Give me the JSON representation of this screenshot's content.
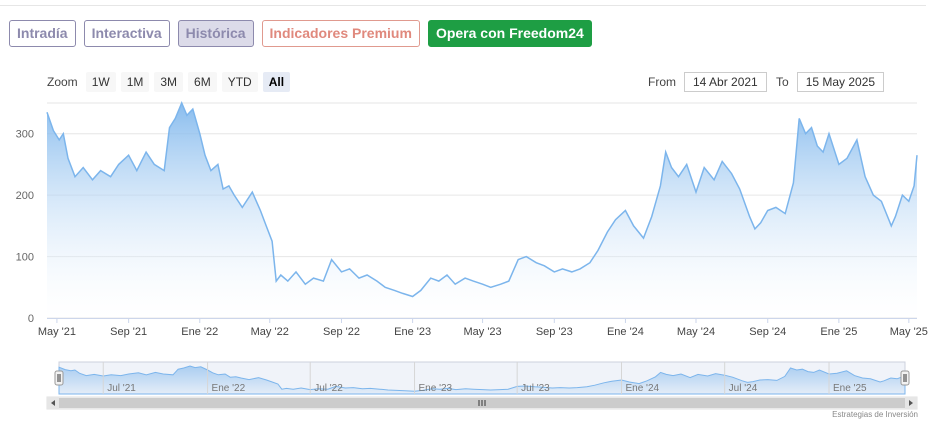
{
  "tabs": [
    {
      "label": "Intradía"
    },
    {
      "label": "Interactiva"
    },
    {
      "label": "Histórica"
    },
    {
      "label": "Indicadores Premium"
    },
    {
      "label": "Opera con Freedom24"
    }
  ],
  "zoom": {
    "label": "Zoom",
    "buttons": [
      "1W",
      "1M",
      "3M",
      "6M",
      "YTD",
      "All"
    ],
    "active": "All"
  },
  "range": {
    "from_label": "From",
    "from_value": "14 Abr 2021",
    "to_label": "To",
    "to_value": "15 May 2025"
  },
  "navigator": {
    "labels": [
      "Jul '21",
      "Ene '22",
      "Jul '22",
      "Ene '23",
      "Jul '23",
      "Ene '24",
      "Jul '24",
      "Ene '25"
    ],
    "handle_icon": "grip-lines-icon"
  },
  "credit": "Estrategias de Inversión",
  "colors": {
    "line": "#7cb5ec",
    "fill_top": "#7cb5ec",
    "fill_bottom": "#ffffff",
    "accent_green": "#1e9e44"
  },
  "chart_data": {
    "type": "area",
    "title": "",
    "xlabel": "",
    "ylabel": "",
    "ylim": [
      0,
      350
    ],
    "yticks": [
      0,
      100,
      200,
      300
    ],
    "x_range": [
      "2021-04-14",
      "2025-05-15"
    ],
    "xtick_labels": [
      {
        "date": "2021-05-01",
        "label": "May '21"
      },
      {
        "date": "2021-09-01",
        "label": "Sep '21"
      },
      {
        "date": "2022-01-01",
        "label": "Ene '22"
      },
      {
        "date": "2022-05-01",
        "label": "May '22"
      },
      {
        "date": "2022-09-01",
        "label": "Sep '22"
      },
      {
        "date": "2023-01-01",
        "label": "Ene '23"
      },
      {
        "date": "2023-05-01",
        "label": "May '23"
      },
      {
        "date": "2023-09-01",
        "label": "Sep '23"
      },
      {
        "date": "2024-01-01",
        "label": "Ene '24"
      },
      {
        "date": "2024-05-01",
        "label": "May '24"
      },
      {
        "date": "2024-09-01",
        "label": "Sep '24"
      },
      {
        "date": "2025-01-01",
        "label": "Ene '25"
      },
      {
        "date": "2025-05-01",
        "label": "May '25"
      }
    ],
    "series": [
      {
        "points": [
          [
            "2021-04-14",
            335
          ],
          [
            "2021-04-25",
            305
          ],
          [
            "2021-05-05",
            290
          ],
          [
            "2021-05-12",
            300
          ],
          [
            "2021-05-20",
            260
          ],
          [
            "2021-06-01",
            230
          ],
          [
            "2021-06-15",
            245
          ],
          [
            "2021-07-01",
            225
          ],
          [
            "2021-07-15",
            240
          ],
          [
            "2021-08-01",
            230
          ],
          [
            "2021-08-15",
            250
          ],
          [
            "2021-09-01",
            265
          ],
          [
            "2021-09-15",
            240
          ],
          [
            "2021-10-01",
            270
          ],
          [
            "2021-10-15",
            250
          ],
          [
            "2021-11-01",
            240
          ],
          [
            "2021-11-10",
            310
          ],
          [
            "2021-11-20",
            325
          ],
          [
            "2021-12-01",
            350
          ],
          [
            "2021-12-10",
            330
          ],
          [
            "2021-12-20",
            340
          ],
          [
            "2022-01-01",
            300
          ],
          [
            "2022-01-10",
            265
          ],
          [
            "2022-01-20",
            240
          ],
          [
            "2022-02-01",
            250
          ],
          [
            "2022-02-10",
            210
          ],
          [
            "2022-02-20",
            215
          ],
          [
            "2022-03-01",
            200
          ],
          [
            "2022-03-15",
            180
          ],
          [
            "2022-04-01",
            205
          ],
          [
            "2022-04-15",
            175
          ],
          [
            "2022-04-25",
            150
          ],
          [
            "2022-05-05",
            125
          ],
          [
            "2022-05-12",
            60
          ],
          [
            "2022-05-20",
            70
          ],
          [
            "2022-06-01",
            60
          ],
          [
            "2022-06-15",
            75
          ],
          [
            "2022-07-01",
            55
          ],
          [
            "2022-07-15",
            65
          ],
          [
            "2022-08-01",
            60
          ],
          [
            "2022-08-15",
            95
          ],
          [
            "2022-09-01",
            75
          ],
          [
            "2022-09-15",
            80
          ],
          [
            "2022-10-01",
            65
          ],
          [
            "2022-10-15",
            70
          ],
          [
            "2022-11-01",
            60
          ],
          [
            "2022-11-15",
            50
          ],
          [
            "2022-12-01",
            45
          ],
          [
            "2022-12-15",
            40
          ],
          [
            "2023-01-01",
            35
          ],
          [
            "2023-01-15",
            45
          ],
          [
            "2023-02-01",
            65
          ],
          [
            "2023-02-15",
            60
          ],
          [
            "2023-03-01",
            70
          ],
          [
            "2023-03-15",
            55
          ],
          [
            "2023-04-01",
            65
          ],
          [
            "2023-04-15",
            60
          ],
          [
            "2023-05-01",
            55
          ],
          [
            "2023-05-15",
            50
          ],
          [
            "2023-06-01",
            55
          ],
          [
            "2023-06-15",
            60
          ],
          [
            "2023-07-01",
            95
          ],
          [
            "2023-07-15",
            100
          ],
          [
            "2023-08-01",
            90
          ],
          [
            "2023-08-15",
            85
          ],
          [
            "2023-09-01",
            75
          ],
          [
            "2023-09-15",
            80
          ],
          [
            "2023-10-01",
            75
          ],
          [
            "2023-10-15",
            80
          ],
          [
            "2023-11-01",
            90
          ],
          [
            "2023-11-15",
            110
          ],
          [
            "2023-12-01",
            140
          ],
          [
            "2023-12-15",
            160
          ],
          [
            "2024-01-01",
            175
          ],
          [
            "2024-01-15",
            150
          ],
          [
            "2024-02-01",
            130
          ],
          [
            "2024-02-15",
            165
          ],
          [
            "2024-03-01",
            215
          ],
          [
            "2024-03-10",
            270
          ],
          [
            "2024-03-20",
            245
          ],
          [
            "2024-04-01",
            230
          ],
          [
            "2024-04-15",
            250
          ],
          [
            "2024-05-01",
            205
          ],
          [
            "2024-05-15",
            245
          ],
          [
            "2024-06-01",
            225
          ],
          [
            "2024-06-15",
            255
          ],
          [
            "2024-07-01",
            235
          ],
          [
            "2024-07-15",
            210
          ],
          [
            "2024-08-01",
            165
          ],
          [
            "2024-08-10",
            145
          ],
          [
            "2024-08-20",
            155
          ],
          [
            "2024-09-01",
            175
          ],
          [
            "2024-09-15",
            180
          ],
          [
            "2024-10-01",
            170
          ],
          [
            "2024-10-15",
            220
          ],
          [
            "2024-10-25",
            325
          ],
          [
            "2024-11-05",
            300
          ],
          [
            "2024-11-15",
            310
          ],
          [
            "2024-11-25",
            280
          ],
          [
            "2024-12-05",
            270
          ],
          [
            "2024-12-15",
            300
          ],
          [
            "2025-01-01",
            250
          ],
          [
            "2025-01-15",
            260
          ],
          [
            "2025-02-01",
            290
          ],
          [
            "2025-02-15",
            230
          ],
          [
            "2025-03-01",
            200
          ],
          [
            "2025-03-15",
            190
          ],
          [
            "2025-04-01",
            150
          ],
          [
            "2025-04-08",
            165
          ],
          [
            "2025-04-20",
            200
          ],
          [
            "2025-05-01",
            190
          ],
          [
            "2025-05-10",
            215
          ],
          [
            "2025-05-15",
            265
          ]
        ]
      }
    ]
  }
}
